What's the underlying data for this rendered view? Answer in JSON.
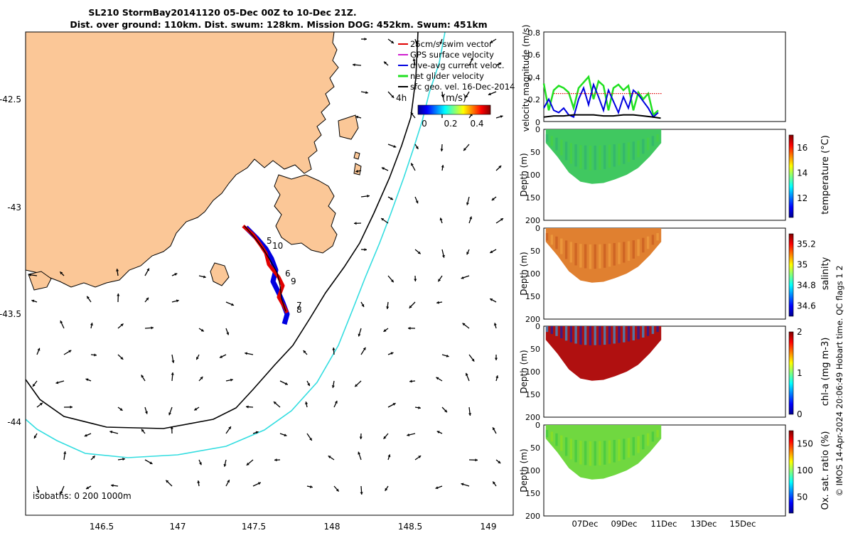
{
  "title": {
    "line1": "SL210 StormBay20141120 05-Dec 00Z to 10-Dec 21Z.",
    "line2": "Dist. over ground: 110km. Dist. swum: 128km. Mission DOG: 452km. Swum: 451km"
  },
  "map": {
    "legend": [
      {
        "label": "25cm/s swim vector",
        "color": "#e00000"
      },
      {
        "label": "GPS surface velocity",
        "color": "#d020d0"
      },
      {
        "label": "dive-avg current veloc.",
        "color": "#0000e0"
      },
      {
        "label": "net glider velocity",
        "color": "#20e020"
      },
      {
        "label": "sfc geo. vel. 16-Dec-2014",
        "color": "#000000"
      }
    ],
    "colorbar": {
      "prefix": "4h",
      "unit": "(m/s)",
      "ticks": [
        "0",
        "0.2",
        "0.4"
      ]
    },
    "isobaths_label": "isobaths: 0   200  1000m",
    "lon_ticks": [
      "146.5",
      "147",
      "147.5",
      "148",
      "148.5",
      "149"
    ],
    "lat_ticks": [
      "-42.5",
      "-43",
      "-43.5",
      "-44"
    ],
    "track_labels": [
      "5",
      "10",
      "6",
      "9",
      "7",
      "8"
    ],
    "colors": {
      "land": "#fbc797",
      "isobath_200": "#000000",
      "isobath_1000": "#33dde0"
    }
  },
  "footer": "© IMOS 14-Apr-2024 20:06:49 Hobart time. QC flags 1  2",
  "chart_data": [
    {
      "type": "line",
      "title": "",
      "ylabel": "velocity magnitude (m/s)",
      "ylim": [
        0,
        0.8
      ],
      "yticks": [
        "0",
        "0.2",
        "0.4",
        "0.6",
        "0.8"
      ],
      "x_range": [
        "05-Dec",
        "17-Dec"
      ],
      "series": [
        {
          "name": "net glider velocity",
          "color": "#20e020",
          "x": [
            "05-Dec 00Z",
            "05-Dec 06Z",
            "05-Dec 12Z",
            "05-Dec 18Z",
            "06-Dec 00Z",
            "06-Dec 06Z",
            "06-Dec 12Z",
            "06-Dec 18Z",
            "07-Dec 00Z",
            "07-Dec 06Z",
            "07-Dec 12Z",
            "07-Dec 18Z",
            "08-Dec 00Z",
            "08-Dec 06Z",
            "08-Dec 12Z",
            "08-Dec 18Z",
            "09-Dec 00Z",
            "09-Dec 06Z",
            "09-Dec 12Z",
            "09-Dec 18Z",
            "10-Dec 00Z",
            "10-Dec 06Z",
            "10-Dec 12Z",
            "10-Dec 18Z"
          ],
          "values": [
            0.34,
            0.1,
            0.28,
            0.32,
            0.3,
            0.26,
            0.12,
            0.3,
            0.35,
            0.4,
            0.2,
            0.36,
            0.32,
            0.1,
            0.3,
            0.33,
            0.28,
            0.32,
            0.1,
            0.26,
            0.2,
            0.25,
            0.06,
            0.1
          ]
        },
        {
          "name": "dive-avg current veloc.",
          "color": "#0000e0",
          "x": [
            "05-Dec 00Z",
            "05-Dec 06Z",
            "05-Dec 12Z",
            "05-Dec 18Z",
            "06-Dec 00Z",
            "06-Dec 06Z",
            "06-Dec 12Z",
            "06-Dec 18Z",
            "07-Dec 00Z",
            "07-Dec 06Z",
            "07-Dec 12Z",
            "07-Dec 18Z",
            "08-Dec 00Z",
            "08-Dec 06Z",
            "08-Dec 12Z",
            "08-Dec 18Z",
            "09-Dec 00Z",
            "09-Dec 06Z",
            "09-Dec 12Z",
            "09-Dec 18Z",
            "10-Dec 00Z",
            "10-Dec 06Z",
            "10-Dec 12Z",
            "10-Dec 18Z"
          ],
          "values": [
            0.12,
            0.2,
            0.1,
            0.08,
            0.12,
            0.06,
            0.04,
            0.2,
            0.3,
            0.15,
            0.33,
            0.22,
            0.1,
            0.28,
            0.18,
            0.08,
            0.22,
            0.12,
            0.28,
            0.24,
            0.18,
            0.12,
            0.04,
            0.08
          ]
        },
        {
          "name": "sfc geo. vel.",
          "color": "#000000",
          "x": [
            "05-Dec 00Z",
            "05-Dec 12Z",
            "06-Dec 00Z",
            "06-Dec 12Z",
            "07-Dec 00Z",
            "07-Dec 12Z",
            "08-Dec 00Z",
            "08-Dec 12Z",
            "09-Dec 00Z",
            "09-Dec 12Z",
            "10-Dec 00Z",
            "10-Dec 12Z",
            "10-Dec 21Z"
          ],
          "values": [
            0.04,
            0.05,
            0.05,
            0.06,
            0.06,
            0.06,
            0.05,
            0.05,
            0.06,
            0.06,
            0.05,
            0.04,
            0.03
          ]
        },
        {
          "name": "25cm/s swim vector",
          "color": "#e00000",
          "x": [
            "05-Dec 12Z",
            "10-Dec 21Z"
          ],
          "values": [
            0.25,
            0.25
          ]
        }
      ]
    },
    {
      "type": "heatmap",
      "ylabel": "Depth (m)",
      "yticks": [
        "0",
        "50",
        "100",
        "150",
        "200"
      ],
      "ylim": [
        200,
        0
      ],
      "colorbar_label": "temperature (°C)",
      "colorbar_ticks": [
        "12",
        "14",
        "16"
      ],
      "colorbar_range": [
        10.5,
        17
      ],
      "profile_depths": [
        30,
        60,
        95,
        115,
        120,
        118,
        110,
        100,
        85,
        60,
        30
      ],
      "colors": [
        "#40c860",
        "#30b070",
        "#48d040"
      ]
    },
    {
      "type": "heatmap",
      "ylabel": "Depth (m)",
      "yticks": [
        "0",
        "50",
        "100",
        "150",
        "200"
      ],
      "ylim": [
        200,
        0
      ],
      "colorbar_label": "salinity",
      "colorbar_ticks": [
        "34.6",
        "34.8",
        "35",
        "35.2"
      ],
      "colorbar_range": [
        34.5,
        35.3
      ],
      "profile_depths": [
        30,
        60,
        95,
        115,
        120,
        118,
        110,
        100,
        85,
        60,
        30
      ],
      "colors": [
        "#e08030",
        "#c85a20",
        "#f0a040"
      ]
    },
    {
      "type": "heatmap",
      "ylabel": "Depth (m)",
      "yticks": [
        "0",
        "50",
        "100",
        "150",
        "200"
      ],
      "ylim": [
        200,
        0
      ],
      "colorbar_label": "chl-a (mg m-3)",
      "colorbar_ticks": [
        "0",
        "1",
        "2"
      ],
      "colorbar_range": [
        0,
        2
      ],
      "profile_depths": [
        30,
        60,
        95,
        115,
        120,
        118,
        110,
        100,
        85,
        60,
        30
      ],
      "colors": [
        "#b01010",
        "#30a0e0",
        "#1020b0"
      ]
    },
    {
      "type": "heatmap",
      "ylabel": "Depth (m)",
      "yticks": [
        "0",
        "50",
        "100",
        "150",
        "200"
      ],
      "ylim": [
        200,
        0
      ],
      "colorbar_label": "Ox. sat. ratio (%)",
      "colorbar_ticks": [
        "50",
        "100",
        "150"
      ],
      "colorbar_range": [
        20,
        175
      ],
      "profile_depths": [
        30,
        60,
        95,
        115,
        120,
        118,
        110,
        100,
        85,
        60,
        30
      ],
      "colors": [
        "#70d840",
        "#40c840",
        "#90e020"
      ]
    }
  ],
  "time_axis": {
    "ticks": [
      "07Dec",
      "09Dec",
      "11Dec",
      "13Dec",
      "15Dec"
    ]
  }
}
